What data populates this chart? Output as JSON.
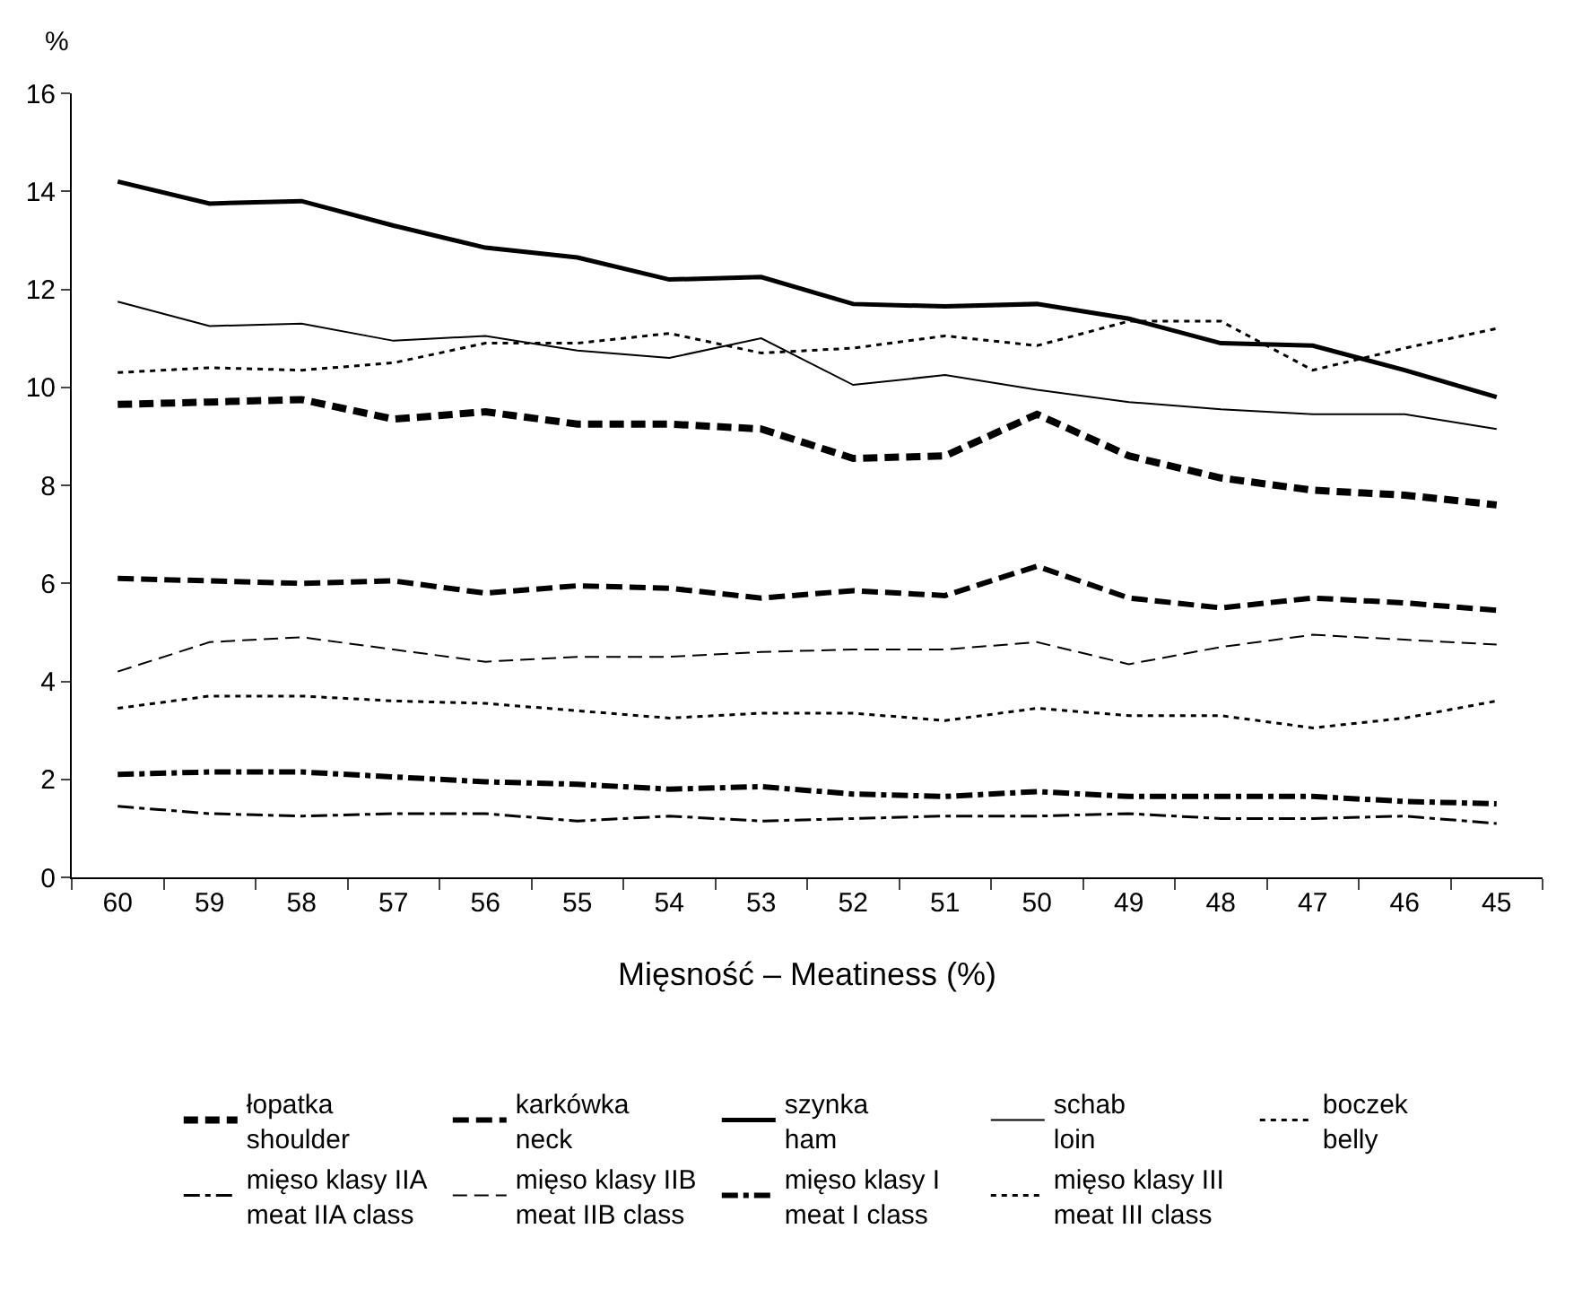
{
  "chart_data": {
    "type": "line",
    "ylabel": "%",
    "xlabel": "Mięsność – Meatiness (%)",
    "categories": [
      "60",
      "59",
      "58",
      "57",
      "56",
      "55",
      "54",
      "53",
      "52",
      "51",
      "50",
      "49",
      "48",
      "47",
      "46",
      "45"
    ],
    "ylim": [
      0,
      16
    ],
    "yticks": [
      0,
      2,
      4,
      6,
      8,
      10,
      12,
      14,
      16
    ],
    "grid": false,
    "legend": "bottom",
    "marker": "none",
    "series": [
      {
        "name": "łopatka\nshoulder",
        "color": "#000000",
        "line_style": "dashed",
        "values": [
          9.65,
          9.7,
          9.75,
          9.35,
          9.5,
          9.25,
          9.25,
          9.15,
          8.55,
          8.6,
          9.45,
          8.6,
          8.15,
          7.9,
          7.8,
          7.6
        ]
      },
      {
        "name": "karkówka\nneck",
        "color": "#000000",
        "line_style": "longdash",
        "values": [
          6.1,
          6.05,
          6.0,
          6.05,
          5.8,
          5.95,
          5.9,
          5.7,
          5.85,
          5.75,
          6.35,
          5.7,
          5.5,
          5.7,
          5.6,
          5.45
        ]
      },
      {
        "name": "szynka\nham",
        "color": "#000000",
        "line_style": "solid",
        "values": [
          14.2,
          13.75,
          13.8,
          13.3,
          12.85,
          12.65,
          12.2,
          12.25,
          11.7,
          11.65,
          11.7,
          11.4,
          10.9,
          10.85,
          10.35,
          9.8
        ]
      },
      {
        "name": "schab\nloin",
        "color": "#000000",
        "line_style": "solid",
        "values": [
          11.75,
          11.25,
          11.3,
          10.95,
          11.05,
          10.75,
          10.6,
          11.0,
          10.05,
          10.25,
          9.95,
          9.7,
          9.55,
          9.45,
          9.45,
          9.15
        ]
      },
      {
        "name": "boczek\nbelly",
        "color": "#000000",
        "line_style": "dotted",
        "values": [
          10.3,
          10.4,
          10.35,
          10.5,
          10.9,
          10.9,
          11.1,
          10.7,
          10.8,
          11.05,
          10.85,
          11.35,
          11.35,
          10.35,
          10.8,
          11.2
        ]
      },
      {
        "name": "mięso klasy IIA\nmeat IIA class",
        "color": "#000000",
        "line_style": "dashdot",
        "values": [
          1.45,
          1.3,
          1.25,
          1.3,
          1.3,
          1.15,
          1.25,
          1.15,
          1.2,
          1.25,
          1.25,
          1.3,
          1.2,
          1.2,
          1.25,
          1.1
        ]
      },
      {
        "name": "mięso klasy IIB\nmeat IIB class",
        "color": "#000000",
        "line_style": "dashed",
        "values": [
          4.2,
          4.8,
          4.9,
          4.65,
          4.4,
          4.5,
          4.5,
          4.6,
          4.65,
          4.65,
          4.8,
          4.35,
          4.7,
          4.95,
          4.85,
          4.75
        ]
      },
      {
        "name": "mięso klasy I\nmeat I class",
        "color": "#000000",
        "line_style": "longdashdot",
        "values": [
          2.1,
          2.15,
          2.15,
          2.05,
          1.95,
          1.9,
          1.8,
          1.85,
          1.7,
          1.65,
          1.75,
          1.65,
          1.65,
          1.65,
          1.55,
          1.5
        ]
      },
      {
        "name": "mięso klasy III\nmeat III class",
        "color": "#000000",
        "line_style": "dotted",
        "values": [
          3.45,
          3.7,
          3.7,
          3.6,
          3.55,
          3.4,
          3.25,
          3.35,
          3.35,
          3.2,
          3.45,
          3.3,
          3.3,
          3.05,
          3.25,
          3.6
        ]
      }
    ]
  }
}
